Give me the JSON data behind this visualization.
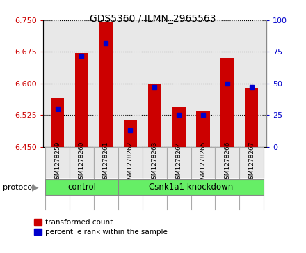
{
  "title": "GDS5360 / ILMN_2965563",
  "samples": [
    "GSM1278259",
    "GSM1278260",
    "GSM1278261",
    "GSM1278262",
    "GSM1278263",
    "GSM1278264",
    "GSM1278265",
    "GSM1278266",
    "GSM1278267"
  ],
  "transformed_counts": [
    6.565,
    6.672,
    6.745,
    6.513,
    6.6,
    6.545,
    6.535,
    6.66,
    6.59
  ],
  "percentile_ranks": [
    30,
    72,
    82,
    13,
    47,
    25,
    25,
    50,
    47
  ],
  "ylim_left": [
    6.45,
    6.75
  ],
  "ylim_right": [
    0,
    100
  ],
  "yticks_left": [
    6.45,
    6.525,
    6.6,
    6.675,
    6.75
  ],
  "yticks_right": [
    0,
    25,
    50,
    75,
    100
  ],
  "bar_color": "#cc0000",
  "percentile_color": "#0000cc",
  "bar_bottom": 6.45,
  "control_indices": [
    0,
    1,
    2
  ],
  "knockdown_indices": [
    3,
    4,
    5,
    6,
    7,
    8
  ],
  "control_label": "control",
  "knockdown_label": "Csnk1a1 knockdown",
  "protocol_label": "protocol",
  "legend_transformed": "transformed count",
  "legend_percentile": "percentile rank within the sample",
  "group_color": "#66ee66",
  "group_border_color": "#888888",
  "tick_label_color_left": "#cc0000",
  "tick_label_color_right": "#0000cc",
  "bar_width": 0.55,
  "plot_bg_color": "#e8e8e8",
  "cell_border_color": "#aaaaaa"
}
